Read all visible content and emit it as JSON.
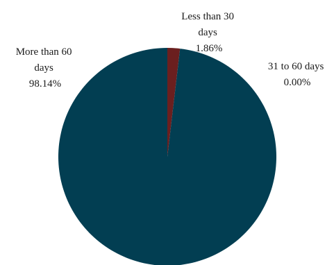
{
  "chart_data": {
    "type": "pie",
    "title": "",
    "start_angle_deg": 0,
    "direction": "clockwise",
    "slices": [
      {
        "label_lines": [
          "Less than 30",
          "days"
        ],
        "value": 1.86,
        "value_label": "1.86%",
        "color": "#6b1f1f"
      },
      {
        "label_lines": [
          "31 to 60 days"
        ],
        "value": 0.0,
        "value_label": "0.00%",
        "color": "#7f7f7f"
      },
      {
        "label_lines": [
          "More than 60",
          "days"
        ],
        "value": 98.14,
        "value_label": "98.14%",
        "color": "#023e52"
      }
    ]
  }
}
